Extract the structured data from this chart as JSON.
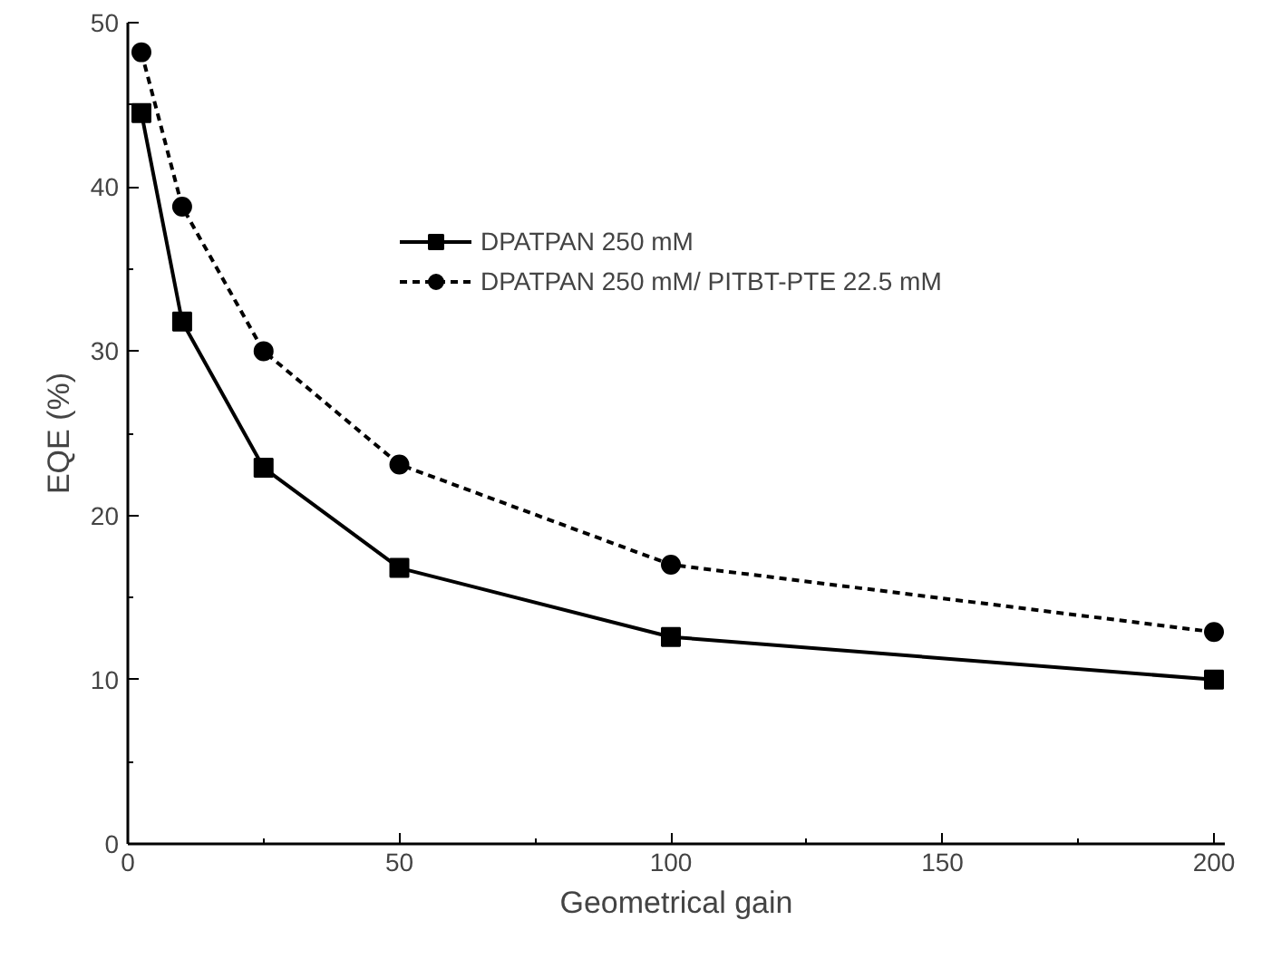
{
  "chart_data": {
    "type": "line",
    "xlabel": "Geometrical gain",
    "ylabel": "EQE (%)",
    "xlim": [
      0,
      202
    ],
    "xticks": [
      0,
      50,
      100,
      150,
      200
    ],
    "ylim": [
      0,
      50
    ],
    "yticks": [
      0,
      10,
      20,
      30,
      40,
      50
    ],
    "grid": false,
    "legend": "top right",
    "series": [
      {
        "name": "DPATPAN 250 mM",
        "color": "#000000",
        "marker": "square",
        "line_style": "solid",
        "x": [
          2.5,
          10,
          25,
          50,
          100,
          200
        ],
        "values": [
          44.5,
          31.8,
          22.9,
          16.8,
          12.6,
          10.0
        ]
      },
      {
        "name": "DPATPAN 250 mM/ PITBT-PTE 22.5 mM",
        "color": "#000000",
        "marker": "circle",
        "line_style": "dashed",
        "x": [
          2.5,
          10,
          25,
          50,
          100,
          200
        ],
        "values": [
          48.2,
          38.8,
          30.0,
          23.1,
          17.0,
          12.9
        ]
      }
    ]
  }
}
